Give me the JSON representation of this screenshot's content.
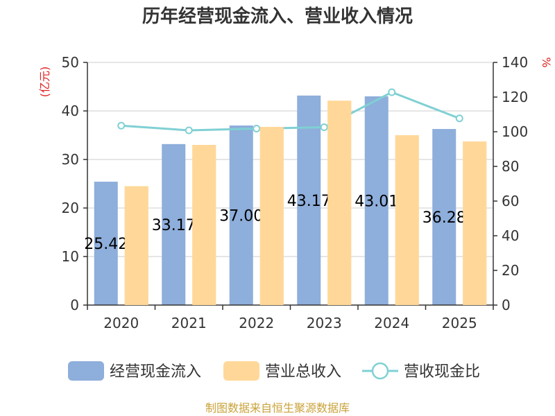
{
  "chart_data": {
    "type": "bar",
    "title": "历年经营现金流入、营业收入情况",
    "categories": [
      "2020",
      "2021",
      "2022",
      "2023",
      "2024",
      "2025"
    ],
    "series": [
      {
        "name": "经营现金流入",
        "type": "bar",
        "axis": "left",
        "color": "#8eaedb",
        "values": [
          25.42,
          33.17,
          37.0,
          43.17,
          43.01,
          36.28
        ]
      },
      {
        "name": "营业总收入",
        "type": "bar",
        "axis": "left",
        "color": "#ffd899",
        "values": [
          24.5,
          33.0,
          36.7,
          42.1,
          35.0,
          33.7
        ]
      },
      {
        "name": "营收现金比",
        "type": "line",
        "axis": "right",
        "color": "#7fd0d4",
        "values": [
          103.5,
          100.8,
          101.8,
          102.6,
          122.8,
          107.7
        ]
      }
    ],
    "data_labels": [
      "25.42",
      "33.17",
      "37.00",
      "43.17",
      "43.01",
      "36.28"
    ],
    "left_axis": {
      "label": "(亿元)",
      "ylim": [
        0,
        50
      ],
      "ticks": [
        0,
        10,
        20,
        30,
        40,
        50
      ]
    },
    "right_axis": {
      "label": "%",
      "ylim": [
        0,
        140
      ],
      "ticks": [
        0,
        20,
        40,
        60,
        80,
        100,
        120,
        140
      ]
    },
    "grid": true,
    "legend_position": "bottom"
  },
  "source": "制图数据来自恒生聚源数据库"
}
